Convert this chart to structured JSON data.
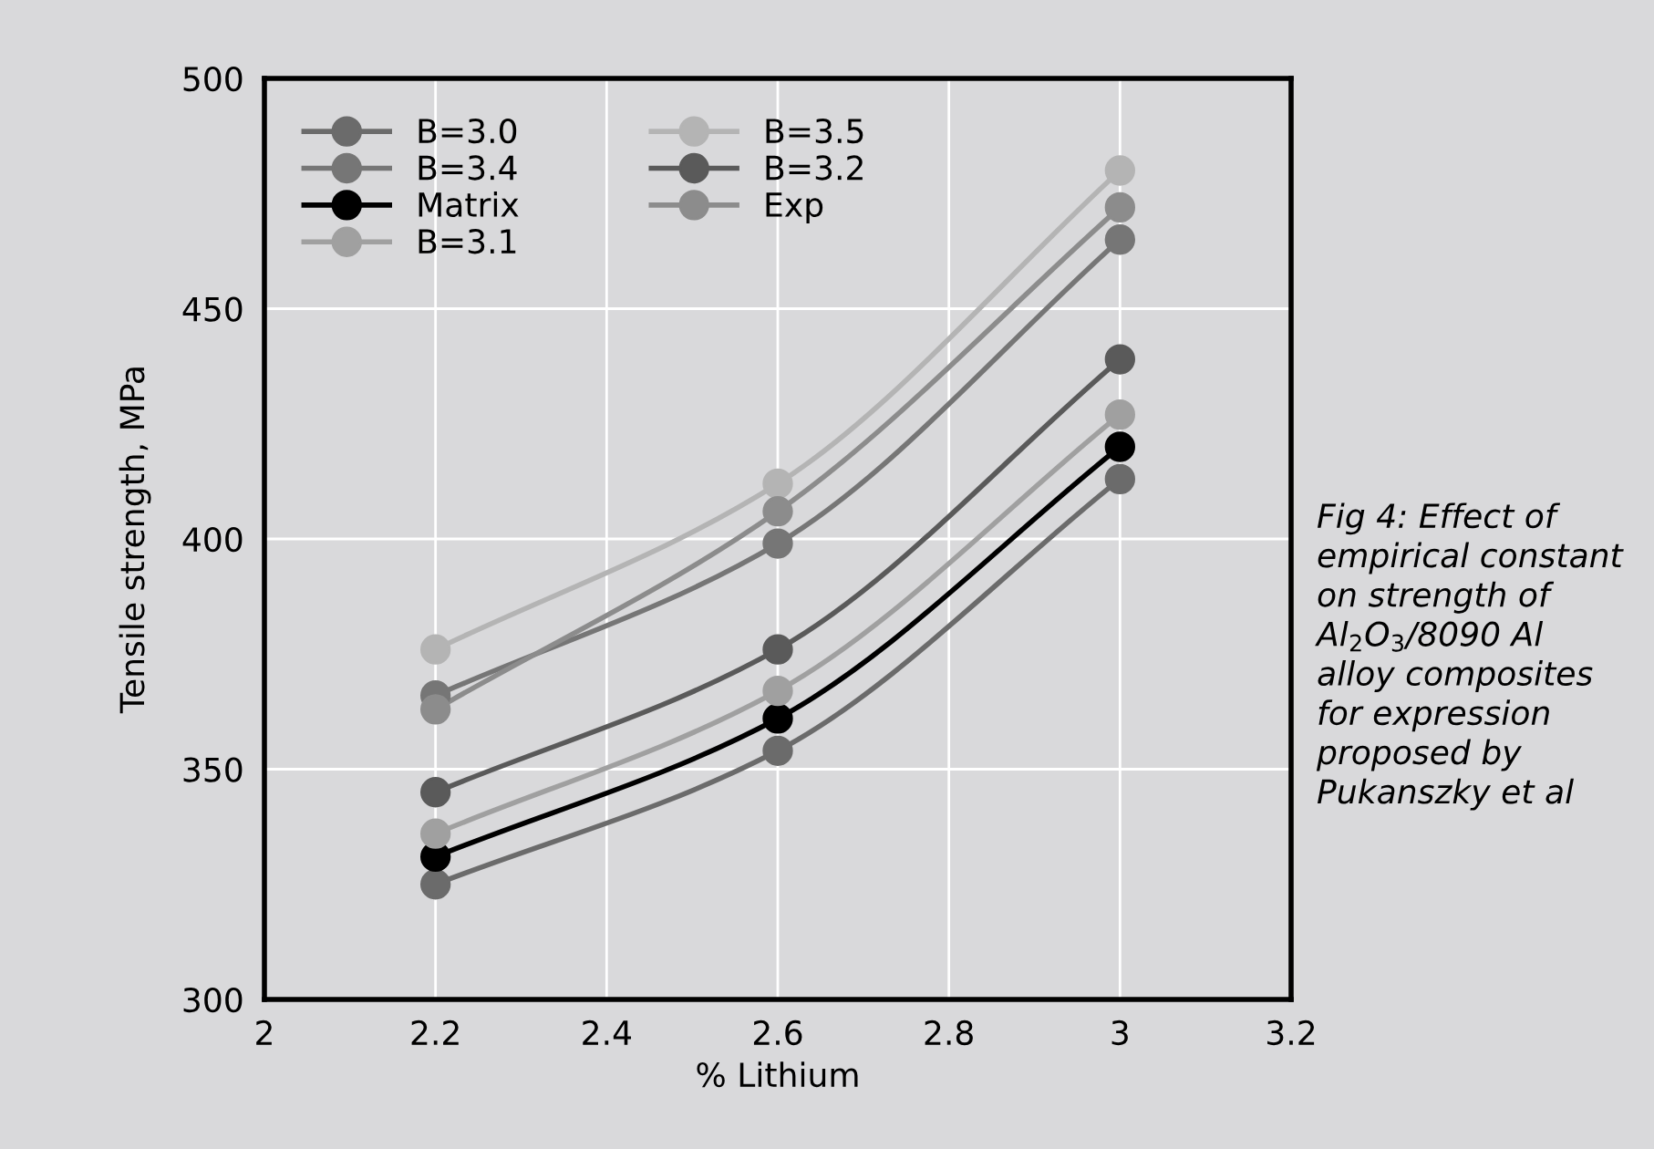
{
  "chart_data": {
    "type": "line",
    "xlabel": "% Lithium",
    "ylabel": "Tensile strength, MPa",
    "x": [
      2.2,
      2.6,
      3.0
    ],
    "series": [
      {
        "name": "B=3.0",
        "color": "#6b6b6b",
        "values": [
          325,
          354,
          413
        ]
      },
      {
        "name": "B=3.4",
        "color": "#767676",
        "values": [
          366,
          399,
          465
        ]
      },
      {
        "name": "Matrix",
        "color": "#000000",
        "values": [
          331,
          361,
          420
        ]
      },
      {
        "name": "B=3.1",
        "color": "#a0a0a0",
        "values": [
          336,
          367,
          427
        ]
      },
      {
        "name": "B=3.5",
        "color": "#b4b4b4",
        "values": [
          376,
          412,
          480
        ]
      },
      {
        "name": "B=3.2",
        "color": "#5a5a5a",
        "values": [
          345,
          376,
          439
        ]
      },
      {
        "name": "Exp",
        "color": "#8c8c8c",
        "values": [
          363,
          406,
          472
        ]
      }
    ],
    "xlim": [
      2,
      3.2
    ],
    "xticks": [
      2,
      2.2,
      2.4,
      2.6,
      2.8,
      3,
      3.2
    ],
    "ylim": [
      300,
      500
    ],
    "yticks": [
      300,
      350,
      400,
      450,
      500
    ],
    "grid": true,
    "legend": "top left",
    "marker": "circle",
    "line_style": "solid",
    "annotations": [
      "Fig 4: Effect of empirical constant on strength of Al$_{2}$O$_{3}$/8090 Al alloy composites for expression proposed by Pukanszky et al"
    ]
  }
}
